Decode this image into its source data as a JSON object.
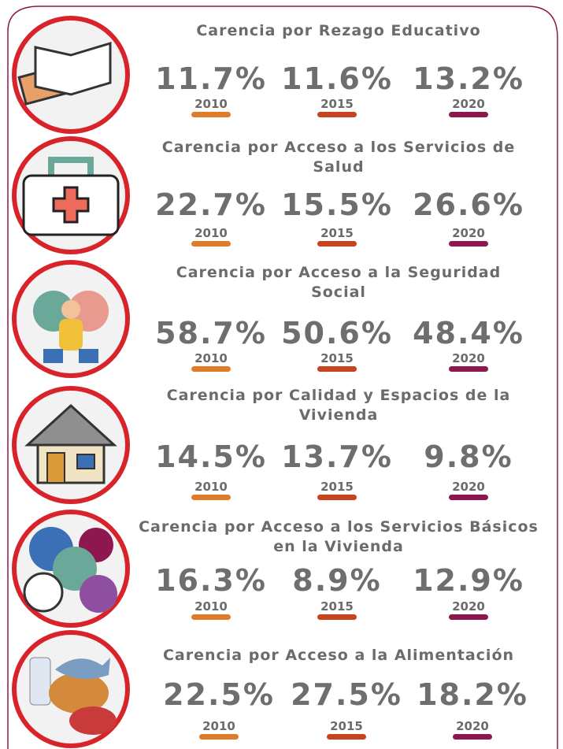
{
  "items": [
    {
      "title_lines": [
        "Carencia por Rezago Educativo"
      ],
      "values": [
        {
          "value": "11.7%",
          "year": "2010"
        },
        {
          "value": "11.6%",
          "year": "2015"
        },
        {
          "value": "13.2%",
          "year": "2020"
        }
      ]
    },
    {
      "title_lines": [
        "Carencia por Acceso a los Servicios de",
        "Salud"
      ],
      "values": [
        {
          "value": "22.7%",
          "year": "2010"
        },
        {
          "value": "15.5%",
          "year": "2015"
        },
        {
          "value": "26.6%",
          "year": "2020"
        }
      ]
    },
    {
      "title_lines": [
        "Carencia por Acceso a la Seguridad",
        "Social"
      ],
      "values": [
        {
          "value": "58.7%",
          "year": "2010"
        },
        {
          "value": "50.6%",
          "year": "2015"
        },
        {
          "value": "48.4%",
          "year": "2020"
        }
      ]
    },
    {
      "title_lines": [
        "Carencia por Calidad y Espacios de la",
        "Vivienda"
      ],
      "values": [
        {
          "value": "14.5%",
          "year": "2010"
        },
        {
          "value": "13.7%",
          "year": "2015"
        },
        {
          "value": "9.8%",
          "year": "2020"
        }
      ]
    },
    {
      "title_lines": [
        "Carencia por Acceso a los Servicios Básicos",
        "en la Vivienda"
      ],
      "values": [
        {
          "value": "16.3%",
          "year": "2010"
        },
        {
          "value": "8.9%",
          "year": "2015"
        },
        {
          "value": "12.9%",
          "year": "2020"
        }
      ]
    },
    {
      "title_lines": [
        "Carencia por Acceso a la Alimentación"
      ],
      "values": [
        {
          "value": "22.5%",
          "year": "2010"
        },
        {
          "value": "27.5%",
          "year": "2015"
        },
        {
          "value": "18.2%",
          "year": "2020"
        }
      ]
    }
  ]
}
